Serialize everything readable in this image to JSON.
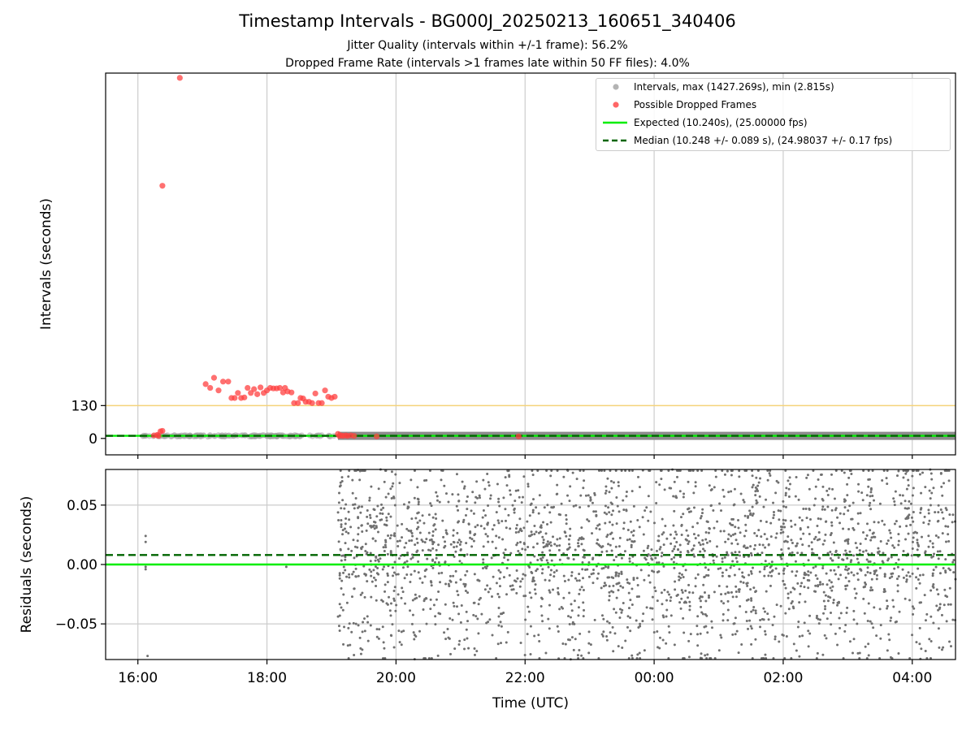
{
  "figure": {
    "title": "Timestamp Intervals - BG000J_20250213_160651_340406",
    "subtitle_line1": "Jitter Quality (intervals within +/-1 frame): 56.2%",
    "subtitle_line2": "Dropped Frame Rate (intervals >1 frames late within 50 FF files): 4.0%"
  },
  "legend": {
    "placement": "top-right",
    "items": [
      {
        "label": "Intervals, max (1427.269s), min (2.815s)",
        "marker": "circle",
        "color": "#a0a0a0"
      },
      {
        "label": "Possible Dropped Frames",
        "marker": "circle",
        "color": "#ff4040"
      },
      {
        "label": "Expected (10.240s), (25.00000 fps)",
        "marker": "solid-line",
        "color": "#00ee00"
      },
      {
        "label": "Median (10.248 +/- 0.089 s), (24.98037 +/- 0.17 fps)",
        "marker": "dashed-line",
        "color": "#006400"
      }
    ]
  },
  "chart_data": [
    {
      "type": "scatter",
      "panel": "intervals",
      "ylabel": "Intervals (seconds)",
      "xlabel": "",
      "xlim_hours_since_16": [
        -0.5,
        12.67
      ],
      "ylim": [
        -65,
        1446
      ],
      "grid": true,
      "x_ticks": [
        "16:00",
        "18:00",
        "20:00",
        "22:00",
        "00:00",
        "02:00",
        "04:00"
      ],
      "y_ticks": [
        0,
        130
      ],
      "reference_lines": {
        "threshold": {
          "y": 130,
          "color": "#f5d37a"
        },
        "expected": {
          "y": 10.24,
          "color": "#00ee00",
          "style": "solid"
        },
        "median": {
          "y": 10.248,
          "color": "#006400",
          "style": "dashed"
        }
      },
      "series": [
        {
          "name": "Possible Dropped Frames",
          "color": "#ff4040",
          "points": [
            {
              "t": 0.65,
              "y": 1427
            },
            {
              "t": 0.38,
              "y": 1000
            },
            {
              "t": 1.05,
              "y": 215
            },
            {
              "t": 1.12,
              "y": 200
            },
            {
              "t": 1.18,
              "y": 240
            },
            {
              "t": 1.25,
              "y": 190
            },
            {
              "t": 1.32,
              "y": 225
            },
            {
              "t": 1.4,
              "y": 225
            },
            {
              "t": 1.45,
              "y": 160
            },
            {
              "t": 1.5,
              "y": 160
            },
            {
              "t": 1.55,
              "y": 180
            },
            {
              "t": 1.6,
              "y": 160
            },
            {
              "t": 1.65,
              "y": 162
            },
            {
              "t": 1.7,
              "y": 200
            },
            {
              "t": 1.75,
              "y": 180
            },
            {
              "t": 1.8,
              "y": 195
            },
            {
              "t": 1.85,
              "y": 175
            },
            {
              "t": 1.9,
              "y": 202
            },
            {
              "t": 1.95,
              "y": 180
            },
            {
              "t": 2.0,
              "y": 190
            },
            {
              "t": 2.05,
              "y": 200
            },
            {
              "t": 2.1,
              "y": 198
            },
            {
              "t": 2.15,
              "y": 198
            },
            {
              "t": 2.2,
              "y": 200
            },
            {
              "t": 2.25,
              "y": 182
            },
            {
              "t": 2.28,
              "y": 200
            },
            {
              "t": 2.32,
              "y": 186
            },
            {
              "t": 2.38,
              "y": 182
            },
            {
              "t": 2.42,
              "y": 140
            },
            {
              "t": 2.48,
              "y": 140
            },
            {
              "t": 2.52,
              "y": 160
            },
            {
              "t": 2.56,
              "y": 158
            },
            {
              "t": 2.6,
              "y": 145
            },
            {
              "t": 2.65,
              "y": 145
            },
            {
              "t": 2.7,
              "y": 140
            },
            {
              "t": 2.75,
              "y": 178
            },
            {
              "t": 2.8,
              "y": 140
            },
            {
              "t": 2.85,
              "y": 140
            },
            {
              "t": 2.9,
              "y": 190
            },
            {
              "t": 2.95,
              "y": 165
            },
            {
              "t": 3.0,
              "y": 160
            },
            {
              "t": 3.05,
              "y": 165
            },
            {
              "t": 0.25,
              "y": 12
            },
            {
              "t": 0.3,
              "y": 14
            },
            {
              "t": 0.35,
              "y": 28
            },
            {
              "t": 0.38,
              "y": 30
            },
            {
              "t": 0.32,
              "y": 10
            },
            {
              "t": 3.1,
              "y": 18
            },
            {
              "t": 3.12,
              "y": 10
            },
            {
              "t": 3.15,
              "y": 12
            },
            {
              "t": 3.18,
              "y": 10
            },
            {
              "t": 3.22,
              "y": 12
            },
            {
              "t": 3.25,
              "y": 10
            },
            {
              "t": 3.3,
              "y": 12
            },
            {
              "t": 3.35,
              "y": 10
            },
            {
              "t": 3.7,
              "y": 8
            },
            {
              "t": 5.9,
              "y": 8
            }
          ]
        }
      ]
    },
    {
      "type": "scatter",
      "panel": "residuals",
      "ylabel": "Residuals (seconds)",
      "xlabel": "Time (UTC)",
      "ylim": [
        -0.08,
        0.08
      ],
      "grid": true,
      "x_ticks": [
        "16:00",
        "18:00",
        "20:00",
        "22:00",
        "00:00",
        "02:00",
        "04:00"
      ],
      "y_ticks": [
        "0.05",
        "0.00",
        "−0.05"
      ],
      "y_tick_values": [
        0.05,
        0.0,
        -0.05
      ],
      "reference_lines": {
        "expected": {
          "y": 0.0,
          "color": "#00ee00",
          "style": "solid"
        },
        "median": {
          "y": 0.008,
          "color": "#006400",
          "style": "dashed"
        }
      },
      "series": [
        {
          "name": "Residuals",
          "color": "#707070",
          "distribution": {
            "t_start": 3.1,
            "t_end": 12.67,
            "spread": 0.089,
            "center": 0.008
          },
          "early_points": [
            {
              "t": 0.12,
              "y": 0.024
            },
            {
              "t": 0.12,
              "y": 0.019
            },
            {
              "t": 0.12,
              "y": -0.002
            },
            {
              "t": 0.12,
              "y": -0.004
            },
            {
              "t": 0.15,
              "y": -0.077
            },
            {
              "t": 2.3,
              "y": -0.002
            }
          ]
        }
      ]
    }
  ]
}
